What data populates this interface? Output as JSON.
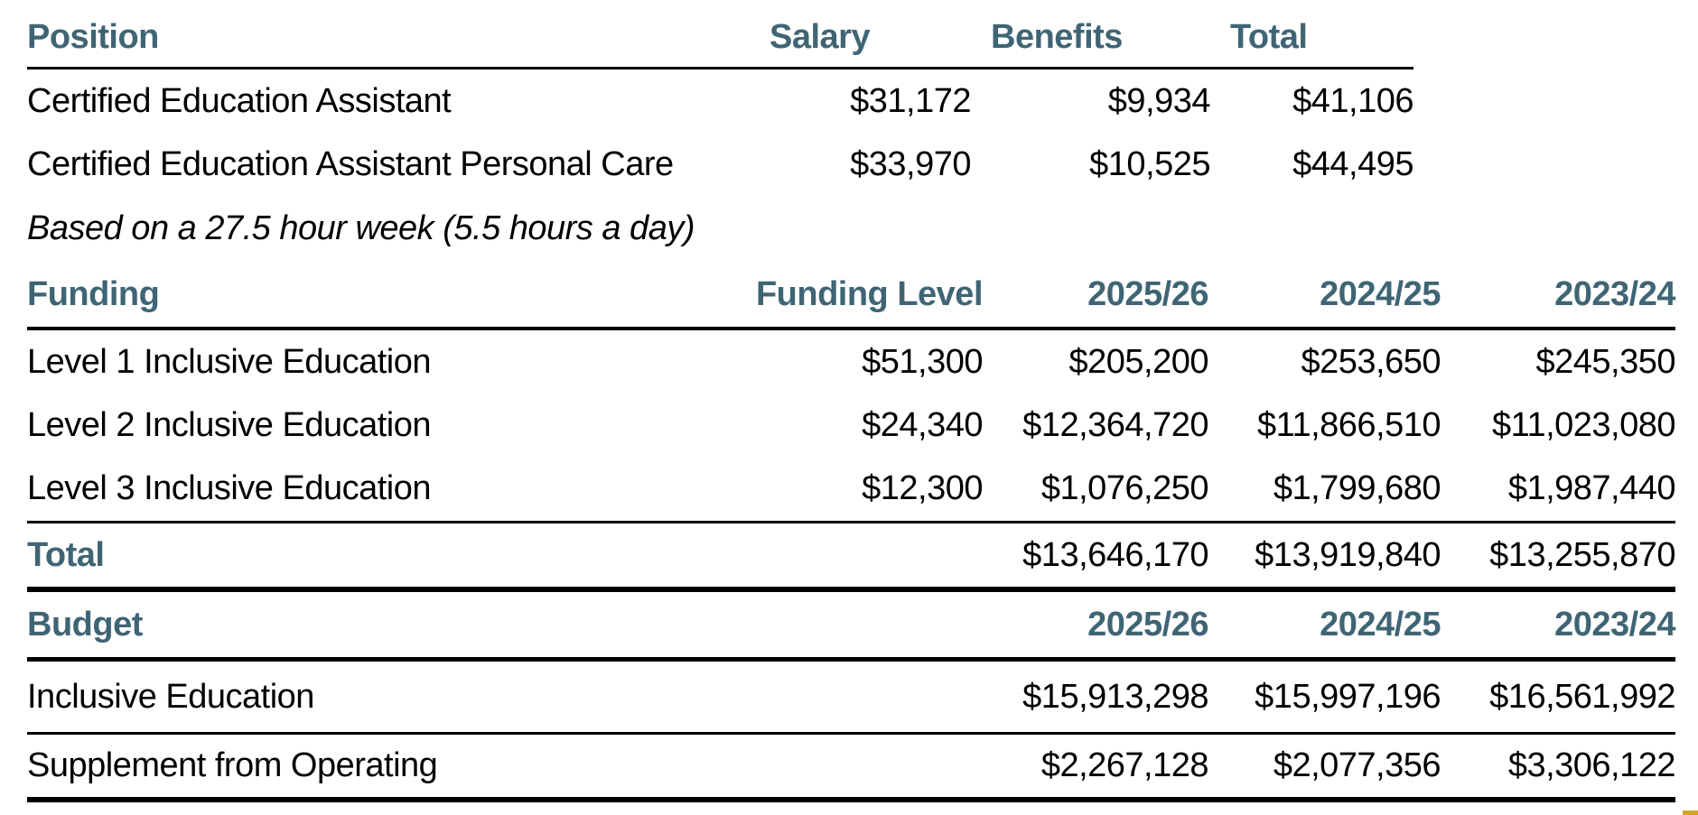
{
  "colors": {
    "heading": "#3F6575",
    "rule": "#000000",
    "corner_accent": "#D4A429"
  },
  "position_table": {
    "headers": [
      "Position",
      "Salary",
      "Benefits",
      "Total"
    ],
    "rows": [
      [
        "Certified Education Assistant",
        "$31,172",
        "$9,934",
        "$41,106"
      ],
      [
        "Certified Education Assistant Personal Care",
        "$33,970",
        "$10,525",
        "$44,495"
      ]
    ],
    "note": "Based on a 27.5 hour week (5.5 hours a day)"
  },
  "funding_table": {
    "headers": [
      "Funding",
      "Funding Level",
      "2025/26",
      "2024/25",
      "2023/24"
    ],
    "rows": [
      [
        "Level 1 Inclusive Education",
        "$51,300",
        "$205,200",
        "$253,650",
        "$245,350"
      ],
      [
        "Level 2 Inclusive Education",
        "$24,340",
        "$12,364,720",
        "$11,866,510",
        "$11,023,080"
      ],
      [
        "Level 3 Inclusive Education",
        "$12,300",
        "$1,076,250",
        "$1,799,680",
        "$1,987,440"
      ]
    ],
    "total_row": [
      "Total",
      "",
      "$13,646,170",
      "$13,919,840",
      "$13,255,870"
    ]
  },
  "budget_table": {
    "headers": [
      "Budget",
      "2025/26",
      "2024/25",
      "2023/24"
    ],
    "rows": [
      [
        "Inclusive Education",
        "$15,913,298",
        "$15,997,196",
        "$16,561,992"
      ],
      [
        "Supplement from Operating",
        "$2,267,128",
        "$2,077,356",
        "$3,306,122"
      ]
    ]
  }
}
